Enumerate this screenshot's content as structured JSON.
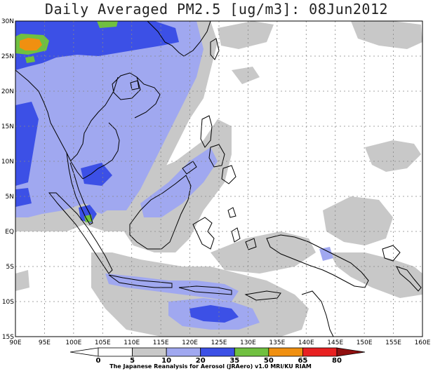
{
  "title": "Daily Averaged PM2.5 [ug/m3]: 08Jun2012",
  "credit": "The Japanese Reanalysis for Aerosol (JRAero) v1.0 MRI/KU RIAM",
  "map": {
    "lon_range": [
      90,
      160
    ],
    "lat_range": [
      -15,
      30
    ],
    "lon_ticks": [
      "90E",
      "95E",
      "100E",
      "105E",
      "110E",
      "115E",
      "120E",
      "125E",
      "130E",
      "135E",
      "140E",
      "145E",
      "150E",
      "155E",
      "160E"
    ],
    "lat_ticks": [
      "30N",
      "25N",
      "20N",
      "15N",
      "10N",
      "5N",
      "EQ",
      "5S",
      "10S",
      "15S"
    ],
    "grid": true
  },
  "colorbar": {
    "levels": [
      "0",
      "5",
      "10",
      "20",
      "35",
      "50",
      "65",
      "80"
    ],
    "colors": [
      "#ffffff",
      "#ffffff",
      "#c8c8c8",
      "#a0a8f0",
      "#3c50e6",
      "#70c040",
      "#f09010",
      "#e82020",
      "#901010"
    ]
  },
  "colors": {
    "level_10": "#c8c8c8",
    "level_20": "#a0a8f0",
    "level_35": "#3c50e6",
    "level_50": "#70c040",
    "level_65": "#f09010",
    "coast": "#000000"
  }
}
